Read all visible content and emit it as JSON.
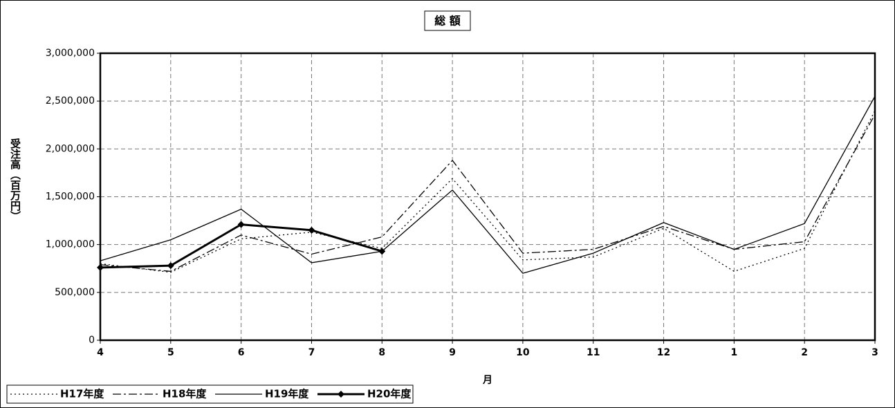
{
  "chart_data": {
    "type": "line",
    "title": "総 額",
    "y_label": "受注高（百万円）",
    "x_label": "月",
    "categories": [
      "4",
      "5",
      "6",
      "7",
      "8",
      "9",
      "10",
      "11",
      "12",
      "1",
      "2",
      "3"
    ],
    "ylim": [
      0,
      3000000
    ],
    "yticks": [
      0,
      {
        "value": 500000,
        "label": "500,000"
      },
      {
        "value": 1000000,
        "label": "1,000,000"
      },
      {
        "value": 1500000,
        "label": "1,500,000"
      },
      {
        "value": 2000000,
        "label": "2,000,000"
      },
      {
        "value": 2500000,
        "label": "2,500,000"
      },
      {
        "value": 3000000,
        "label": "3,000,000"
      }
    ],
    "grid": true,
    "legend": "bottom-left",
    "series": [
      {
        "name": "H17年度",
        "color": "#000000",
        "dash": "dotted",
        "values": [
          800000,
          710000,
          1060000,
          1130000,
          960000,
          1690000,
          840000,
          870000,
          1170000,
          720000,
          960000,
          2400000
        ]
      },
      {
        "name": "H18年度",
        "color": "#000000",
        "dash": "dash-dot",
        "values": [
          790000,
          720000,
          1100000,
          900000,
          1080000,
          1880000,
          910000,
          950000,
          1190000,
          950000,
          1030000,
          2360000
        ]
      },
      {
        "name": "H19年度",
        "color": "#000000",
        "dash": "solid",
        "values": [
          830000,
          1050000,
          1370000,
          810000,
          930000,
          1570000,
          700000,
          910000,
          1230000,
          950000,
          1220000,
          2550000
        ]
      },
      {
        "name": "H20年度",
        "color": "#000000",
        "dash": "solid",
        "width": 3,
        "marker": "diamond",
        "values": [
          760000,
          780000,
          1210000,
          1150000,
          930000,
          null,
          null,
          null,
          null,
          null,
          null,
          null
        ]
      }
    ]
  }
}
